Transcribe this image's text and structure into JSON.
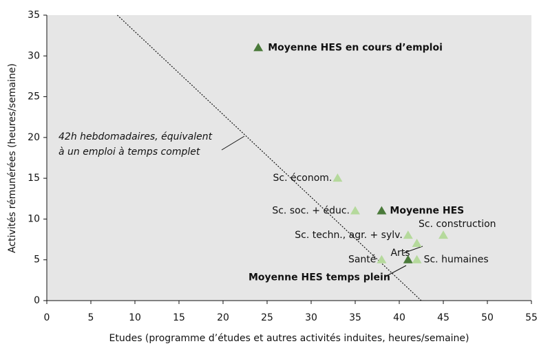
{
  "chart_data": {
    "type": "scatter",
    "xlabel": "Etudes (programme d’études et autres activités induites, heures/semaine)",
    "ylabel": "Activités rémunérées (heures/semaine)",
    "xlim": [
      0,
      55
    ],
    "ylim": [
      0,
      35
    ],
    "xticks": [
      0,
      5,
      10,
      15,
      20,
      25,
      30,
      35,
      40,
      45,
      50,
      55
    ],
    "yticks": [
      0,
      5,
      10,
      15,
      20,
      25,
      30,
      35
    ],
    "background": "#e6e6e6",
    "points": [
      {
        "label": "Moyenne HES en cours d’emploi",
        "x": 24,
        "y": 31,
        "color": "#4a7a3a",
        "bold": true
      },
      {
        "label": "Sc. économ.",
        "x": 33,
        "y": 15,
        "color": "#b5d99c",
        "bold": false
      },
      {
        "label": "Sc. soc. + éduc.",
        "x": 35,
        "y": 11,
        "color": "#b5d99c",
        "bold": false
      },
      {
        "label": "Moyenne HES",
        "x": 38,
        "y": 11,
        "color": "#4a7a3a",
        "bold": true
      },
      {
        "label": "Sc. techn., agr. + sylv.",
        "x": 41,
        "y": 8,
        "color": "#b5d99c",
        "bold": false
      },
      {
        "label": "Arts",
        "x": 42,
        "y": 7,
        "color": "#b5d99c",
        "bold": false
      },
      {
        "label": "Sc. construction",
        "x": 45,
        "y": 8,
        "color": "#b5d99c",
        "bold": false
      },
      {
        "label": "Santé",
        "x": 38,
        "y": 5,
        "color": "#b5d99c",
        "bold": false
      },
      {
        "label": "Moyenne HES temps plein",
        "x": 41,
        "y": 5,
        "color": "#4a7a3a",
        "bold": true
      },
      {
        "label": "Sc. humaines",
        "x": 42,
        "y": 5,
        "color": "#b5d99c",
        "bold": false
      }
    ],
    "reference_line": {
      "x": [
        8,
        42.5
      ],
      "y": [
        35,
        0
      ]
    },
    "annotation": [
      "42h hebdomadaires, équivalent",
      "à un emploi à temps complet"
    ]
  }
}
